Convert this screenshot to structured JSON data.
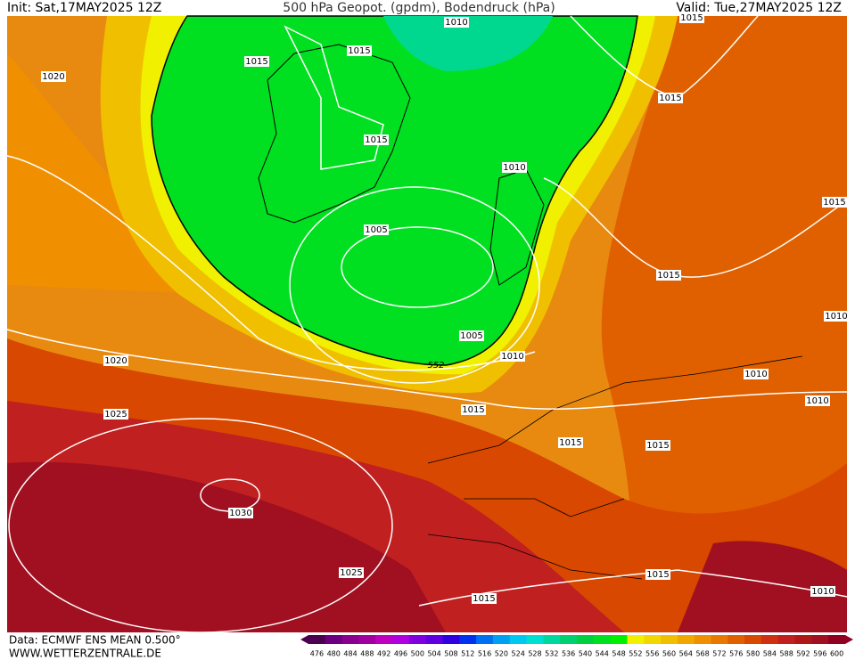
{
  "header": {
    "init": "Init: Sat,17MAY2025 12Z",
    "title": "500 hPa Geopot. (gpdm), Bodendruck (hPa)",
    "valid": "Valid: Tue,27MAY2025 12Z"
  },
  "isobar_labels": [
    1010,
    1015,
    1015,
    1020,
    1015,
    1015,
    1010,
    1015,
    1005,
    1015,
    1010,
    1005,
    1010,
    552,
    1020,
    1010,
    1010,
    1015,
    1025,
    1015,
    1015,
    1030,
    1025,
    1015,
    1015,
    1010,
    1015
  ],
  "colorbar": {
    "labels": [
      476,
      480,
      484,
      488,
      492,
      496,
      500,
      504,
      508,
      512,
      516,
      520,
      524,
      528,
      532,
      536,
      540,
      544,
      548,
      552,
      556,
      560,
      564,
      568,
      572,
      576,
      580,
      584,
      588,
      592,
      596,
      600
    ],
    "colors": [
      "#4b0050",
      "#6a0080",
      "#8a0090",
      "#a000a0",
      "#c000c0",
      "#b000e0",
      "#8000e0",
      "#6000e0",
      "#3000e0",
      "#0030f0",
      "#0070f0",
      "#00a0f0",
      "#00c8f0",
      "#00e0d0",
      "#00d8a0",
      "#00d070",
      "#00d040",
      "#00e020",
      "#00f000",
      "#f0f000",
      "#f0d800",
      "#f0c000",
      "#f0a800",
      "#f09000",
      "#e87800",
      "#e06000",
      "#d84800",
      "#d03010",
      "#c02020",
      "#b01818",
      "#a01020",
      "#900020"
    ]
  },
  "footer": {
    "source": "Data: ECMWF ENS MEAN 0.500°",
    "website": "WWW.WETTERZENTRALE.DE"
  }
}
